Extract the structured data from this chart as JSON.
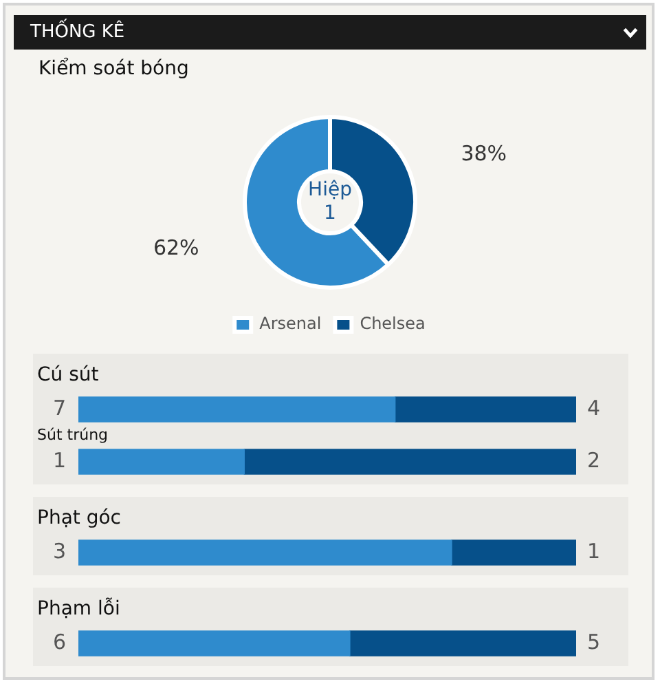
{
  "chart_data": [
    {
      "type": "donut",
      "title": "THỐNG KÊ",
      "subtitle": "Kiểm soát bóng",
      "categories": [
        "Arsenal",
        "Chelsea"
      ],
      "values": [
        62,
        38
      ],
      "colors": [
        "#2f8bcd",
        "#06508a"
      ],
      "value_labels": [
        "62%",
        "38%"
      ],
      "legend": "bottom",
      "annotations": [
        "Hiệp 1"
      ]
    },
    {
      "type": "bar",
      "orientation": "horizontal",
      "stacked": true,
      "title": "Cú sút",
      "categories": [
        null
      ],
      "series": [
        {
          "color": "#2f8bcd",
          "values": [
            7
          ]
        },
        {
          "color": "#06508a",
          "values": [
            4
          ]
        }
      ],
      "xlim": [
        0,
        11
      ],
      "tick_labels": false,
      "data_labels": true
    },
    {
      "type": "bar",
      "orientation": "horizontal",
      "stacked": true,
      "categories": [
        "Sút trúng"
      ],
      "series": [
        {
          "color": "#2f8bcd",
          "values": [
            1
          ]
        },
        {
          "color": "#06508a",
          "values": [
            2
          ]
        }
      ],
      "xlim": [
        0,
        3
      ],
      "tick_labels": "y",
      "data_labels": true
    },
    {
      "type": "bar",
      "orientation": "horizontal",
      "stacked": true,
      "title": "Phạt góc",
      "categories": [
        null
      ],
      "series": [
        {
          "color": "#2f8bcd",
          "values": [
            3
          ]
        },
        {
          "color": "#06508a",
          "values": [
            1
          ]
        }
      ],
      "xlim": [
        0,
        4
      ],
      "tick_labels": false,
      "data_labels": true
    },
    {
      "type": "bar",
      "orientation": "horizontal",
      "stacked": true,
      "title": "Phạm lỗi",
      "categories": [
        null
      ],
      "series": [
        {
          "color": "#2f8bcd",
          "values": [
            6
          ]
        },
        {
          "color": "#06508a",
          "values": [
            5
          ]
        }
      ],
      "xlim": [
        0,
        11
      ],
      "tick_labels": false,
      "data_labels": true
    }
  ]
}
